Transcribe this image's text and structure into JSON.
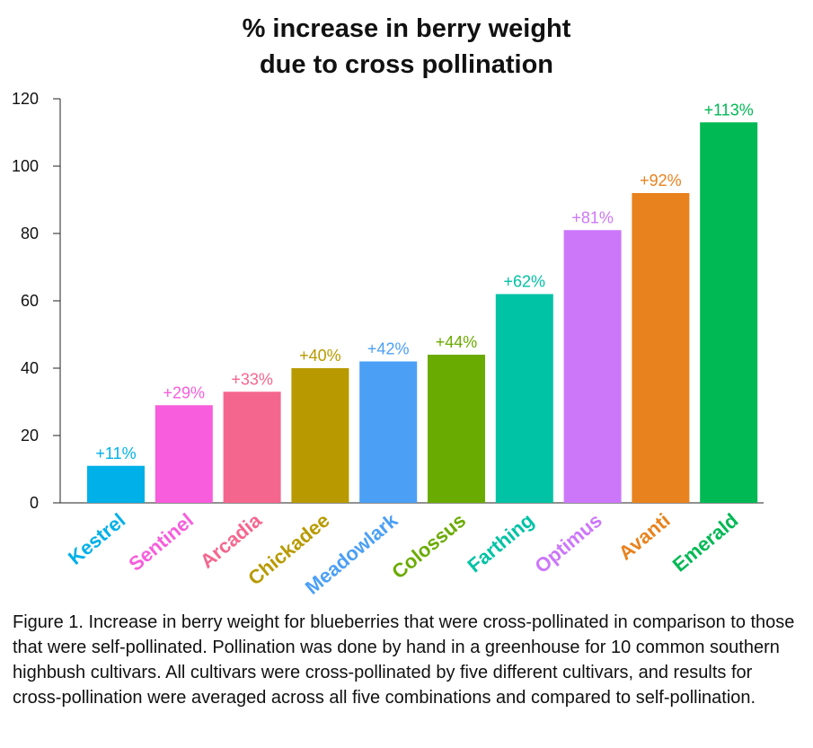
{
  "chart_data": {
    "type": "bar",
    "title_line1": "% increase in berry weight",
    "title_line2": "due to cross pollination",
    "xlabel": "",
    "ylabel": "",
    "ylim": [
      0,
      120
    ],
    "yticks": [
      0,
      20,
      40,
      60,
      80,
      100,
      120
    ],
    "grid": false,
    "legend": false,
    "categories": [
      "Kestrel",
      "Sentinel",
      "Arcadia",
      "Chickadee",
      "Meadowlark",
      "Colossus",
      "Farthing",
      "Optimus",
      "Avanti",
      "Emerald"
    ],
    "values": [
      11,
      29,
      33,
      40,
      42,
      44,
      62,
      81,
      92,
      113
    ],
    "data_labels": [
      "+11%",
      "+29%",
      "+33%",
      "+40%",
      "+42%",
      "+44%",
      "+62%",
      "+81%",
      "+92%",
      "+113%"
    ],
    "colors": [
      "#00b0e8",
      "#f75ddc",
      "#f5668e",
      "#b89a00",
      "#4b9ff5",
      "#6aab00",
      "#00c2a5",
      "#cc77fa",
      "#e8821e",
      "#00b854"
    ]
  },
  "caption": "Figure 1. Increase in berry weight for blueberries that were cross-pollinated in comparison to those that were self-pollinated. Pollination was done by hand in a greenhouse for 10 common southern highbush cultivars. All cultivars were cross-pollinated by five different cultivars, and results for cross-pollination were averaged across all five combinations and compared to self-pollination."
}
